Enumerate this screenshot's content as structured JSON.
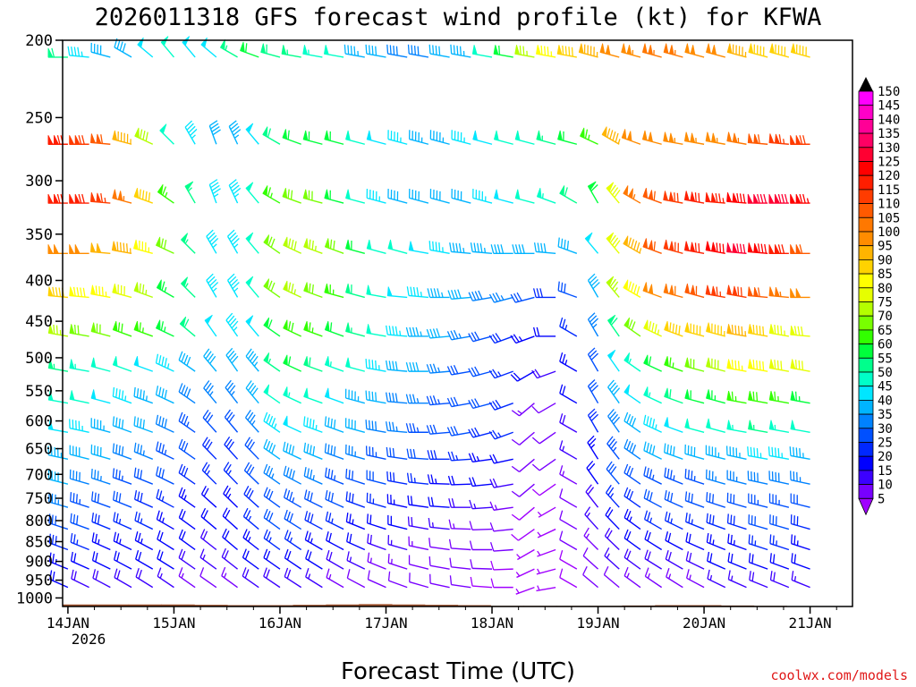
{
  "chart_data": {
    "type": "wind-barb-profile",
    "title": "2026011318 GFS forecast wind profile (kt) for KFWA",
    "xlabel": "Forecast Time (UTC)",
    "ylabel": "",
    "credit": "coolwx.com/models",
    "x_ticks": [
      "14JAN",
      "15JAN",
      "16JAN",
      "17JAN",
      "18JAN",
      "19JAN",
      "20JAN",
      "21JAN"
    ],
    "x_year": "2026",
    "x_range_days": [
      -0.05,
      7.4
    ],
    "y_ticks": [
      "200",
      "250",
      "300",
      "350",
      "400",
      "450",
      "500",
      "550",
      "600",
      "650",
      "700",
      "750",
      "800",
      "850",
      "900",
      "950",
      "1000"
    ],
    "y_range_hpa": [
      200,
      1025
    ],
    "legend_labels": [
      "150",
      "145",
      "140",
      "135",
      "130",
      "125",
      "120",
      "115",
      "110",
      "105",
      "100",
      "95",
      "90",
      "85",
      "80",
      "75",
      "70",
      "65",
      "60",
      "55",
      "50",
      "45",
      "40",
      "35",
      "30",
      "25",
      "20",
      "15",
      "10",
      "5"
    ],
    "legend_colors": [
      "#ff00ff",
      "#ff00c8",
      "#ff0096",
      "#ff0064",
      "#ff0032",
      "#ff0000",
      "#ff1e00",
      "#ff3c00",
      "#ff5a00",
      "#ff7800",
      "#ff8c00",
      "#ffb400",
      "#ffd200",
      "#ffff00",
      "#e6ff00",
      "#b4ff00",
      "#78ff00",
      "#32ff00",
      "#00ff3c",
      "#00ff8c",
      "#00ffc8",
      "#00e6ff",
      "#00b4ff",
      "#0082ff",
      "#0050ff",
      "#0028ff",
      "#0000ff",
      "#3c00ff",
      "#7800ff",
      "#a000ff"
    ],
    "terrain_color": "#a0522d",
    "surface_pressure_hpa": [
      1019,
      1019,
      1019,
      1019,
      1020,
      1021,
      1021,
      1020,
      1019,
      1018,
      1019,
      1020,
      1021,
      1023,
      1023,
      1023,
      1023,
      1022,
      1021,
      1021,
      1022,
      1023,
      1024,
      1024
    ],
    "levels_hpa": [
      210,
      270,
      320,
      370,
      420,
      470,
      520,
      570,
      620,
      670,
      720,
      770,
      820,
      870,
      920,
      970
    ],
    "wind_speed_kt": [
      [
        58,
        45,
        40,
        42,
        48,
        52,
        48,
        48,
        55,
        60,
        58,
        55,
        54,
        50,
        44,
        40,
        38,
        38,
        40,
        44,
        50,
        60,
        75,
        85,
        92,
        96,
        100,
        104,
        105,
        105,
        102,
        100,
        96,
        92,
        90,
        90
      ],
      [
        120,
        118,
        110,
        95,
        78,
        52,
        45,
        42,
        44,
        48,
        58,
        62,
        62,
        60,
        52,
        48,
        46,
        44,
        44,
        46,
        48,
        50,
        52,
        56,
        60,
        65,
        95,
        100,
        102,
        104,
        104,
        104,
        106,
        110,
        115,
        118
      ],
      [
        122,
        120,
        115,
        105,
        90,
        66,
        55,
        45,
        46,
        52,
        66,
        72,
        72,
        62,
        52,
        46,
        42,
        40,
        40,
        42,
        46,
        48,
        50,
        54,
        58,
        62,
        80,
        105,
        112,
        118,
        120,
        124,
        128,
        132,
        130,
        125
      ],
      [
        102,
        100,
        98,
        95,
        85,
        70,
        55,
        45,
        46,
        52,
        72,
        78,
        76,
        70,
        60,
        52,
        50,
        48,
        46,
        44,
        44,
        42,
        40,
        40,
        42,
        48,
        80,
        95,
        110,
        118,
        122,
        128,
        132,
        128,
        122,
        110
      ],
      [
        90,
        88,
        85,
        80,
        75,
        64,
        55,
        45,
        46,
        52,
        70,
        75,
        72,
        66,
        58,
        52,
        48,
        46,
        44,
        40,
        38,
        35,
        30,
        28,
        30,
        40,
        75,
        88,
        100,
        108,
        112,
        116,
        118,
        112,
        105,
        100
      ],
      [
        76,
        72,
        70,
        68,
        66,
        64,
        58,
        48,
        46,
        48,
        62,
        68,
        66,
        62,
        56,
        50,
        46,
        44,
        40,
        36,
        32,
        28,
        24,
        22,
        26,
        36,
        58,
        72,
        84,
        90,
        92,
        94,
        95,
        90,
        84,
        80
      ],
      [
        56,
        54,
        52,
        50,
        48,
        46,
        42,
        40,
        40,
        44,
        56,
        60,
        58,
        54,
        50,
        45,
        42,
        40,
        36,
        32,
        30,
        26,
        20,
        18,
        24,
        32,
        48,
        54,
        60,
        66,
        72,
        78,
        85,
        88,
        82,
        80
      ],
      [
        52,
        50,
        48,
        46,
        44,
        42,
        38,
        36,
        36,
        40,
        50,
        54,
        52,
        48,
        44,
        40,
        38,
        36,
        34,
        32,
        30,
        28,
        14,
        12,
        22,
        30,
        42,
        48,
        54,
        58,
        62,
        64,
        66,
        68,
        66,
        64
      ],
      [
        48,
        46,
        44,
        42,
        40,
        38,
        34,
        32,
        32,
        36,
        45,
        48,
        46,
        42,
        40,
        38,
        36,
        34,
        32,
        30,
        28,
        26,
        12,
        10,
        18,
        28,
        38,
        42,
        46,
        48,
        50,
        52,
        54,
        56,
        54,
        52
      ],
      [
        44,
        42,
        40,
        38,
        36,
        34,
        30,
        28,
        28,
        32,
        40,
        42,
        40,
        38,
        36,
        34,
        32,
        30,
        28,
        26,
        24,
        22,
        12,
        10,
        16,
        24,
        34,
        38,
        40,
        42,
        42,
        44,
        44,
        46,
        46,
        44
      ],
      [
        40,
        38,
        36,
        34,
        32,
        30,
        28,
        26,
        26,
        30,
        36,
        38,
        36,
        34,
        32,
        30,
        28,
        26,
        24,
        22,
        20,
        18,
        10,
        8,
        14,
        22,
        30,
        32,
        34,
        34,
        34,
        36,
        36,
        38,
        38,
        36
      ],
      [
        36,
        34,
        32,
        30,
        28,
        26,
        24,
        22,
        24,
        28,
        32,
        34,
        32,
        30,
        28,
        26,
        24,
        22,
        20,
        18,
        16,
        14,
        8,
        6,
        12,
        18,
        26,
        28,
        30,
        30,
        30,
        32,
        32,
        34,
        34,
        32
      ],
      [
        32,
        30,
        28,
        26,
        26,
        24,
        22,
        20,
        22,
        26,
        30,
        30,
        28,
        26,
        24,
        22,
        20,
        18,
        16,
        14,
        12,
        10,
        8,
        6,
        10,
        16,
        22,
        24,
        26,
        26,
        26,
        28,
        28,
        30,
        30,
        28
      ],
      [
        28,
        26,
        24,
        24,
        24,
        22,
        20,
        18,
        20,
        24,
        26,
        26,
        24,
        22,
        20,
        18,
        16,
        14,
        12,
        12,
        10,
        10,
        6,
        6,
        10,
        14,
        18,
        20,
        22,
        22,
        22,
        24,
        24,
        26,
        26,
        24
      ],
      [
        24,
        22,
        22,
        22,
        22,
        20,
        18,
        16,
        18,
        22,
        22,
        22,
        20,
        18,
        16,
        14,
        14,
        12,
        10,
        10,
        10,
        8,
        6,
        6,
        8,
        12,
        16,
        18,
        18,
        18,
        18,
        20,
        20,
        22,
        22,
        20
      ],
      [
        20,
        18,
        18,
        18,
        18,
        16,
        14,
        12,
        14,
        18,
        18,
        18,
        16,
        14,
        12,
        12,
        12,
        10,
        10,
        10,
        8,
        8,
        6,
        6,
        8,
        10,
        12,
        14,
        14,
        14,
        14,
        16,
        16,
        18,
        18,
        16
      ]
    ],
    "wind_dir_deg": [
      [
        270,
        275,
        285,
        300,
        310,
        320,
        320,
        310,
        300,
        290,
        285,
        280,
        280,
        280,
        280,
        280,
        280,
        280,
        280,
        280,
        280,
        280,
        280,
        280,
        280,
        285,
        285,
        285,
        285,
        285,
        285,
        285,
        285,
        285,
        285,
        285
      ],
      [
        270,
        270,
        275,
        285,
        295,
        315,
        330,
        340,
        335,
        320,
        300,
        290,
        285,
        285,
        285,
        285,
        285,
        285,
        285,
        285,
        285,
        285,
        285,
        285,
        285,
        295,
        300,
        290,
        285,
        280,
        280,
        280,
        280,
        275,
        275,
        270
      ],
      [
        270,
        270,
        275,
        285,
        290,
        305,
        330,
        340,
        335,
        320,
        300,
        290,
        285,
        285,
        285,
        285,
        285,
        285,
        285,
        285,
        285,
        285,
        285,
        290,
        300,
        330,
        320,
        300,
        290,
        280,
        280,
        275,
        275,
        270,
        270,
        270
      ],
      [
        270,
        270,
        275,
        280,
        285,
        295,
        315,
        330,
        330,
        320,
        305,
        295,
        290,
        290,
        285,
        285,
        285,
        280,
        280,
        275,
        275,
        270,
        270,
        275,
        290,
        320,
        320,
        300,
        290,
        285,
        280,
        280,
        275,
        275,
        270,
        270
      ],
      [
        275,
        275,
        280,
        285,
        290,
        300,
        315,
        330,
        330,
        320,
        305,
        295,
        290,
        285,
        285,
        280,
        275,
        275,
        270,
        265,
        260,
        255,
        255,
        270,
        290,
        330,
        320,
        300,
        290,
        285,
        285,
        280,
        280,
        275,
        275,
        270
      ],
      [
        280,
        280,
        285,
        290,
        290,
        295,
        310,
        325,
        325,
        320,
        305,
        295,
        290,
        290,
        285,
        280,
        275,
        270,
        265,
        260,
        255,
        250,
        250,
        270,
        300,
        330,
        325,
        305,
        295,
        290,
        285,
        285,
        280,
        280,
        280,
        275
      ],
      [
        280,
        280,
        285,
        290,
        290,
        295,
        305,
        320,
        325,
        320,
        305,
        295,
        290,
        290,
        285,
        280,
        275,
        270,
        265,
        260,
        255,
        250,
        240,
        250,
        300,
        330,
        325,
        305,
        295,
        290,
        285,
        285,
        280,
        280,
        280,
        280
      ],
      [
        280,
        282,
        285,
        290,
        290,
        295,
        305,
        320,
        322,
        320,
        305,
        295,
        290,
        290,
        285,
        280,
        275,
        270,
        265,
        260,
        255,
        250,
        230,
        240,
        300,
        330,
        325,
        305,
        295,
        290,
        285,
        285,
        280,
        280,
        280,
        280
      ],
      [
        280,
        282,
        285,
        290,
        290,
        295,
        305,
        318,
        320,
        318,
        305,
        295,
        290,
        290,
        285,
        280,
        275,
        270,
        265,
        260,
        255,
        250,
        230,
        235,
        300,
        330,
        325,
        305,
        295,
        290,
        285,
        285,
        280,
        280,
        280,
        280
      ],
      [
        282,
        284,
        286,
        290,
        292,
        296,
        305,
        316,
        318,
        316,
        305,
        295,
        292,
        290,
        286,
        282,
        278,
        274,
        270,
        266,
        262,
        258,
        230,
        235,
        300,
        328,
        322,
        305,
        296,
        290,
        286,
        284,
        282,
        280,
        280,
        280
      ],
      [
        284,
        286,
        288,
        290,
        292,
        296,
        305,
        315,
        316,
        314,
        305,
        298,
        294,
        292,
        288,
        284,
        280,
        276,
        272,
        268,
        264,
        260,
        230,
        235,
        300,
        325,
        320,
        305,
        296,
        292,
        288,
        286,
        284,
        282,
        282,
        282
      ],
      [
        286,
        288,
        290,
        292,
        294,
        298,
        305,
        312,
        314,
        312,
        306,
        300,
        296,
        294,
        290,
        286,
        282,
        278,
        274,
        270,
        266,
        262,
        230,
        240,
        300,
        322,
        318,
        305,
        298,
        294,
        290,
        288,
        286,
        284,
        284,
        284
      ],
      [
        288,
        290,
        292,
        294,
        296,
        300,
        306,
        310,
        312,
        310,
        306,
        302,
        298,
        296,
        292,
        288,
        284,
        280,
        276,
        272,
        268,
        264,
        235,
        245,
        300,
        318,
        316,
        306,
        300,
        296,
        292,
        290,
        288,
        286,
        286,
        286
      ],
      [
        290,
        292,
        294,
        296,
        298,
        302,
        306,
        308,
        310,
        308,
        306,
        304,
        300,
        298,
        294,
        290,
        286,
        282,
        278,
        274,
        270,
        266,
        240,
        250,
        300,
        315,
        314,
        306,
        302,
        298,
        294,
        292,
        290,
        288,
        288,
        288
      ],
      [
        292,
        294,
        296,
        298,
        300,
        302,
        305,
        306,
        308,
        306,
        305,
        304,
        302,
        300,
        296,
        292,
        288,
        284,
        280,
        276,
        272,
        268,
        245,
        255,
        300,
        312,
        312,
        306,
        302,
        300,
        296,
        294,
        292,
        290,
        290,
        290
      ],
      [
        294,
        296,
        298,
        300,
        302,
        304,
        305,
        305,
        306,
        305,
        304,
        303,
        302,
        300,
        298,
        294,
        290,
        286,
        282,
        278,
        274,
        270,
        250,
        260,
        300,
        310,
        310,
        306,
        304,
        302,
        298,
        296,
        294,
        292,
        292,
        292
      ]
    ]
  }
}
